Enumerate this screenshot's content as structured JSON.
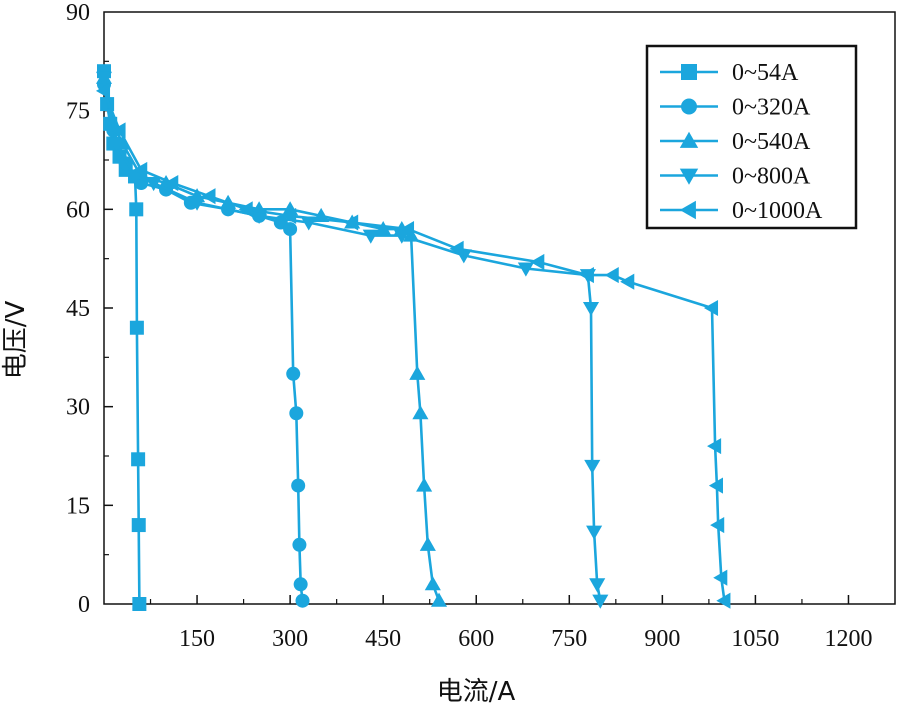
{
  "chart_data": {
    "type": "line",
    "title": "",
    "xlabel": "电流/A",
    "ylabel": "电压/V",
    "xlim": [
      0,
      1275
    ],
    "ylim": [
      0,
      90
    ],
    "x_ticks": [
      150,
      300,
      450,
      600,
      750,
      900,
      1050,
      1200
    ],
    "y_ticks": [
      0,
      15,
      30,
      45,
      60,
      75,
      90
    ],
    "grid": false,
    "legend": "top-right",
    "color": "#1ba6dd",
    "series": [
      {
        "name": "0~54A",
        "marker": "square",
        "points": [
          [
            0,
            81
          ],
          [
            5,
            76
          ],
          [
            10,
            73
          ],
          [
            15,
            70
          ],
          [
            25,
            68
          ],
          [
            35,
            66
          ],
          [
            50,
            65
          ],
          [
            52,
            60
          ],
          [
            53,
            42
          ],
          [
            55,
            22
          ],
          [
            56,
            12
          ],
          [
            57,
            0
          ]
        ]
      },
      {
        "name": "0~320A",
        "marker": "circle",
        "points": [
          [
            0,
            79
          ],
          [
            15,
            72
          ],
          [
            35,
            67
          ],
          [
            60,
            64
          ],
          [
            100,
            63
          ],
          [
            140,
            61
          ],
          [
            200,
            60
          ],
          [
            250,
            59
          ],
          [
            285,
            58
          ],
          [
            300,
            57
          ],
          [
            305,
            35
          ],
          [
            310,
            29
          ],
          [
            313,
            18
          ],
          [
            315,
            9
          ],
          [
            317,
            3
          ],
          [
            320,
            0.5
          ]
        ]
      },
      {
        "name": "0~540A",
        "marker": "triangle-up",
        "points": [
          [
            0,
            80
          ],
          [
            15,
            73
          ],
          [
            30,
            70
          ],
          [
            60,
            65
          ],
          [
            100,
            64
          ],
          [
            150,
            62
          ],
          [
            200,
            61
          ],
          [
            250,
            60
          ],
          [
            300,
            60
          ],
          [
            350,
            59
          ],
          [
            400,
            58
          ],
          [
            450,
            57
          ],
          [
            480,
            57
          ],
          [
            495,
            56
          ],
          [
            505,
            35
          ],
          [
            510,
            29
          ],
          [
            516,
            18
          ],
          [
            522,
            9
          ],
          [
            530,
            3
          ],
          [
            540,
            0.5
          ]
        ]
      },
      {
        "name": "0~800A",
        "marker": "triangle-down",
        "points": [
          [
            0,
            80
          ],
          [
            20,
            70
          ],
          [
            50,
            65
          ],
          [
            80,
            64
          ],
          [
            150,
            61
          ],
          [
            250,
            59
          ],
          [
            330,
            58
          ],
          [
            430,
            56
          ],
          [
            480,
            56
          ],
          [
            580,
            53
          ],
          [
            680,
            51
          ],
          [
            780,
            50
          ],
          [
            785,
            45
          ],
          [
            787,
            21
          ],
          [
            790,
            11
          ],
          [
            795,
            3
          ],
          [
            800,
            0.5
          ]
        ]
      },
      {
        "name": "0~1000A",
        "marker": "triangle-left",
        "points": [
          [
            0,
            78
          ],
          [
            25,
            72
          ],
          [
            60,
            66
          ],
          [
            110,
            64
          ],
          [
            170,
            62
          ],
          [
            230,
            60
          ],
          [
            300,
            59
          ],
          [
            400,
            58
          ],
          [
            490,
            57
          ],
          [
            570,
            54
          ],
          [
            700,
            52
          ],
          [
            780,
            50
          ],
          [
            820,
            50
          ],
          [
            845,
            49
          ],
          [
            980,
            45
          ],
          [
            985,
            24
          ],
          [
            988,
            18
          ],
          [
            990,
            12
          ],
          [
            995,
            4
          ],
          [
            1000,
            0.5
          ]
        ]
      }
    ]
  }
}
